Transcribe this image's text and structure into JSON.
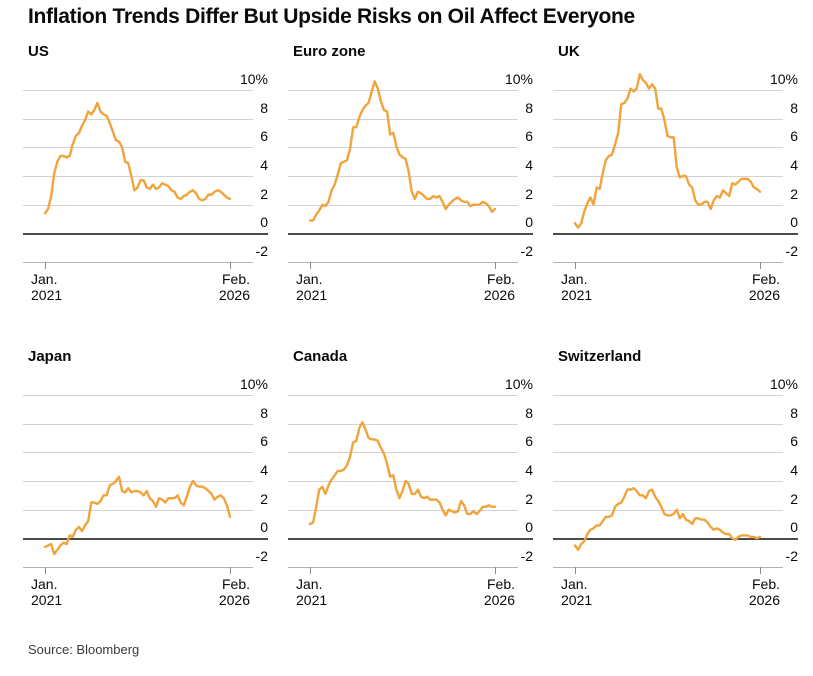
{
  "title": "Inflation Trends Differ But Upside Risks on Oil Affect Everyone",
  "source": "Source: Bloomberg",
  "colors": {
    "line": "#F1A33C",
    "grid": "#d2d2d2",
    "baseline": "#b3b3b3",
    "zero_line": "#4a4a4a",
    "text": "#0a0a0a"
  },
  "chart_data": {
    "type": "line",
    "x_axis": {
      "start_label": [
        "Jan.",
        "2021"
      ],
      "end_label": [
        "Feb.",
        "2026"
      ],
      "frequency": "monthly"
    },
    "y_axis": {
      "tick_labels": [
        "10%",
        "8",
        "6",
        "4",
        "2",
        "0",
        "-2"
      ],
      "tick_values": [
        10,
        8,
        6,
        4,
        2,
        0,
        -2
      ],
      "min": -2,
      "max": 10
    },
    "panels": [
      {
        "title": "US",
        "values": [
          1.4,
          1.7,
          2.6,
          4.2,
          5.0,
          5.4,
          5.4,
          5.3,
          5.4,
          6.2,
          6.8,
          7.0,
          7.5,
          7.9,
          8.5,
          8.3,
          8.6,
          9.1,
          8.5,
          8.3,
          8.2,
          7.7,
          7.1,
          6.5,
          6.4,
          6.0,
          5.0,
          4.9,
          4.0,
          3.0,
          3.2,
          3.7,
          3.7,
          3.2,
          3.1,
          3.4,
          3.1,
          3.2,
          3.5,
          3.4,
          3.3,
          3.0,
          2.9,
          2.5,
          2.4,
          2.6,
          2.7,
          2.9,
          3.0,
          2.8,
          2.4,
          2.3,
          2.4,
          2.7,
          2.7,
          2.9,
          3.0,
          2.9,
          2.7,
          2.5,
          2.4
        ]
      },
      {
        "title": "Euro zone",
        "values": [
          0.9,
          0.9,
          1.3,
          1.6,
          2.0,
          1.9,
          2.2,
          3.0,
          3.4,
          4.1,
          4.9,
          5.0,
          5.1,
          5.9,
          7.4,
          7.4,
          8.1,
          8.6,
          8.9,
          9.1,
          9.9,
          10.6,
          10.1,
          9.2,
          8.6,
          8.5,
          6.9,
          7.0,
          6.1,
          5.5,
          5.3,
          5.2,
          4.3,
          2.9,
          2.4,
          2.9,
          2.8,
          2.6,
          2.4,
          2.4,
          2.6,
          2.5,
          2.6,
          2.2,
          1.7,
          2.0,
          2.2,
          2.4,
          2.5,
          2.3,
          2.2,
          2.2,
          1.9,
          2.0,
          2.0,
          2.0,
          2.2,
          2.1,
          1.9,
          1.5,
          1.7
        ]
      },
      {
        "title": "UK",
        "values": [
          0.7,
          0.4,
          0.7,
          1.5,
          2.1,
          2.5,
          2.0,
          3.2,
          3.1,
          4.2,
          5.1,
          5.4,
          5.5,
          6.2,
          7.0,
          9.0,
          9.1,
          9.4,
          10.1,
          9.9,
          10.1,
          11.1,
          10.7,
          10.5,
          10.1,
          10.4,
          10.1,
          8.7,
          8.7,
          7.9,
          6.8,
          6.7,
          6.7,
          4.6,
          3.9,
          4.0,
          4.0,
          3.4,
          3.2,
          2.3,
          2.0,
          2.0,
          2.2,
          2.2,
          1.7,
          2.3,
          2.6,
          2.5,
          3.0,
          2.8,
          2.6,
          3.5,
          3.4,
          3.6,
          3.8,
          3.8,
          3.8,
          3.6,
          3.2,
          3.1,
          2.9
        ]
      },
      {
        "title": "Japan",
        "values": [
          -0.6,
          -0.5,
          -0.4,
          -1.1,
          -0.8,
          -0.5,
          -0.3,
          -0.4,
          0.2,
          0.1,
          0.6,
          0.8,
          0.5,
          0.9,
          1.2,
          2.5,
          2.5,
          2.4,
          2.6,
          3.0,
          3.0,
          3.7,
          3.8,
          4.0,
          4.3,
          3.3,
          3.2,
          3.5,
          3.2,
          3.3,
          3.3,
          3.2,
          3.0,
          3.3,
          2.8,
          2.6,
          2.2,
          2.8,
          2.7,
          2.5,
          2.8,
          2.8,
          2.8,
          3.0,
          2.5,
          2.3,
          2.9,
          3.6,
          4.0,
          3.7,
          3.6,
          3.6,
          3.5,
          3.3,
          3.1,
          2.7,
          2.9,
          3.0,
          2.8,
          2.3,
          1.5
        ]
      },
      {
        "title": "Canada",
        "values": [
          1.0,
          1.1,
          2.2,
          3.4,
          3.6,
          3.1,
          3.7,
          4.1,
          4.4,
          4.7,
          4.7,
          4.8,
          5.1,
          5.7,
          6.7,
          6.8,
          7.7,
          8.1,
          7.6,
          7.0,
          6.9,
          6.9,
          6.8,
          6.3,
          5.9,
          5.2,
          4.3,
          4.4,
          3.4,
          2.8,
          3.3,
          4.0,
          3.8,
          3.1,
          3.1,
          3.4,
          2.9,
          2.8,
          2.9,
          2.7,
          2.7,
          2.7,
          2.5,
          2.0,
          1.6,
          2.0,
          1.9,
          1.8,
          1.9,
          2.6,
          2.3,
          1.7,
          1.7,
          1.9,
          1.7,
          1.9,
          2.2,
          2.2,
          2.3,
          2.2,
          2.2
        ]
      },
      {
        "title": "Switzerland",
        "values": [
          -0.5,
          -0.8,
          -0.4,
          -0.2,
          0.3,
          0.6,
          0.7,
          0.9,
          0.9,
          1.2,
          1.5,
          1.5,
          1.6,
          2.2,
          2.4,
          2.5,
          2.9,
          3.4,
          3.4,
          3.5,
          3.3,
          3.0,
          3.0,
          2.8,
          3.3,
          3.4,
          2.9,
          2.6,
          2.2,
          1.7,
          1.6,
          1.6,
          1.7,
          2.0,
          1.4,
          1.7,
          1.3,
          1.2,
          1.0,
          1.4,
          1.4,
          1.3,
          1.3,
          1.1,
          0.8,
          0.6,
          0.7,
          0.6,
          0.4,
          0.3,
          0.3,
          0.0,
          -0.1,
          0.1,
          0.2,
          0.2,
          0.2,
          0.1,
          0.1,
          0.0,
          0.1
        ]
      }
    ]
  }
}
